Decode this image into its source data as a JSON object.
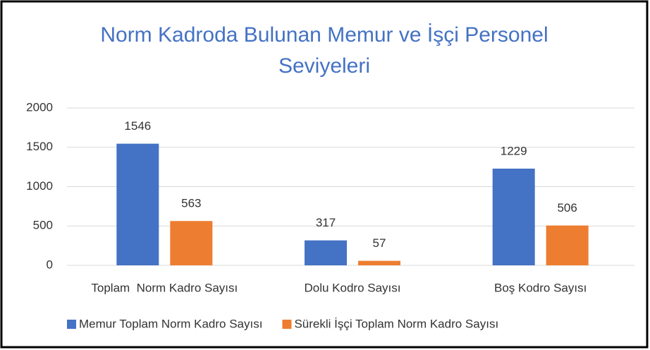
{
  "chart_data": {
    "type": "bar",
    "title": "Norm Kadroda Bulunan Memur ve İşçi Personel Seviyeleri",
    "categories": [
      "Toplam  Norm Kadro Sayısı",
      "Dolu Kodro Sayısı",
      "Boş Kodro Sayısı"
    ],
    "series": [
      {
        "name": "Memur Toplam Norm Kadro Sayısı",
        "color": "#4472c4",
        "values": [
          1546,
          317,
          1229
        ]
      },
      {
        "name": "Sürekli İşçi Toplam Norm Kadro Sayısı",
        "color": "#ed7d31",
        "values": [
          563,
          57,
          506
        ]
      }
    ],
    "ylim": [
      0,
      2000
    ],
    "yticks": [
      0,
      500,
      1000,
      1500,
      2000
    ],
    "grid": true,
    "legend": "bottom"
  }
}
